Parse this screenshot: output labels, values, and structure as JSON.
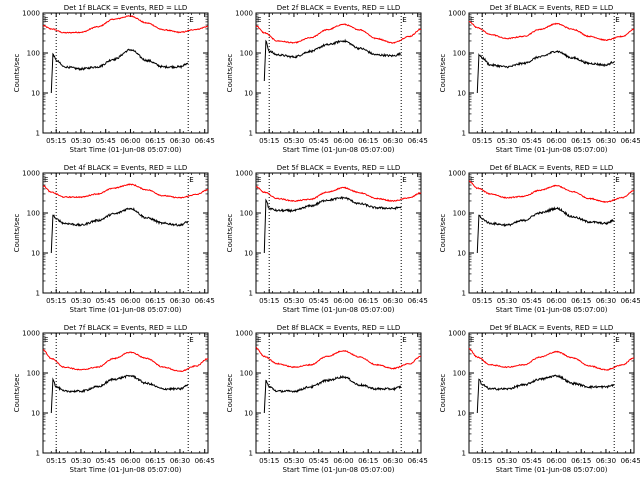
{
  "figure": {
    "xlabel": "Start Time (01-Jun-08 05:07:00)",
    "ylabel": "Counts/sec",
    "xticks": [
      "05:15",
      "05:30",
      "05:45",
      "06:00",
      "06:15",
      "06:30",
      "06:45"
    ],
    "yticks": [
      "1",
      "10",
      "100",
      "1000"
    ],
    "marker_letter": "E",
    "colors": {
      "events": "#000000",
      "lld": "#ff0000",
      "frame": "#000000"
    }
  },
  "chart_data": [
    {
      "type": "line",
      "title": "Det 1f  BLACK = Events, RED = LLD",
      "ylog": true,
      "xlim": [
        "05:07",
        "06:47"
      ],
      "ylim": [
        1,
        1000
      ],
      "vlines": [
        "05:15",
        "06:35"
      ],
      "series": [
        {
          "name": "LLD",
          "color": "#ff0000",
          "x": [
            "05:07",
            "05:12",
            "05:20",
            "05:30",
            "05:40",
            "05:50",
            "06:00",
            "06:10",
            "06:20",
            "06:30",
            "06:40",
            "06:47"
          ],
          "values": [
            480,
            400,
            320,
            330,
            450,
            700,
            840,
            560,
            380,
            330,
            390,
            460
          ]
        },
        {
          "name": "Events",
          "color": "#000000",
          "x": [
            "05:12",
            "05:13",
            "05:15",
            "05:20",
            "05:30",
            "05:40",
            "05:50",
            "06:00",
            "06:10",
            "06:20",
            "06:30",
            "06:35"
          ],
          "values": [
            10,
            95,
            65,
            45,
            40,
            45,
            70,
            120,
            65,
            45,
            45,
            55
          ]
        }
      ]
    },
    {
      "type": "line",
      "title": "Det 2f  BLACK = Events, RED = LLD",
      "ylog": true,
      "xlim": [
        "05:07",
        "06:47"
      ],
      "ylim": [
        1,
        1000
      ],
      "vlines": [
        "05:15",
        "06:35"
      ],
      "series": [
        {
          "name": "LLD",
          "color": "#ff0000",
          "x": [
            "05:07",
            "05:12",
            "05:20",
            "05:30",
            "05:40",
            "05:50",
            "06:00",
            "06:10",
            "06:20",
            "06:30",
            "06:40",
            "06:47"
          ],
          "values": [
            480,
            320,
            200,
            180,
            240,
            380,
            520,
            380,
            230,
            180,
            260,
            390
          ]
        },
        {
          "name": "Events",
          "color": "#000000",
          "x": [
            "05:12",
            "05:13",
            "05:15",
            "05:20",
            "05:30",
            "05:40",
            "05:50",
            "06:00",
            "06:10",
            "06:20",
            "06:30",
            "06:35"
          ],
          "values": [
            20,
            200,
            110,
            90,
            80,
            110,
            160,
            200,
            130,
            90,
            85,
            95
          ]
        }
      ]
    },
    {
      "type": "line",
      "title": "Det 3f  BLACK = Events, RED = LLD",
      "ylog": true,
      "xlim": [
        "05:07",
        "06:47"
      ],
      "ylim": [
        1,
        1000
      ],
      "vlines": [
        "05:15",
        "06:35"
      ],
      "series": [
        {
          "name": "LLD",
          "color": "#ff0000",
          "x": [
            "05:07",
            "05:12",
            "05:20",
            "05:30",
            "05:40",
            "05:50",
            "06:00",
            "06:10",
            "06:20",
            "06:30",
            "06:40",
            "06:47"
          ],
          "values": [
            620,
            430,
            290,
            230,
            260,
            390,
            540,
            390,
            260,
            210,
            260,
            390
          ]
        },
        {
          "name": "Events",
          "color": "#000000",
          "x": [
            "05:12",
            "05:13",
            "05:15",
            "05:20",
            "05:30",
            "05:40",
            "05:50",
            "06:00",
            "06:10",
            "06:20",
            "06:30",
            "06:35"
          ],
          "values": [
            10,
            90,
            75,
            50,
            45,
            55,
            80,
            110,
            75,
            55,
            50,
            60
          ]
        }
      ]
    },
    {
      "type": "line",
      "title": "Det 4f  BLACK = Events, RED = LLD",
      "ylog": true,
      "xlim": [
        "05:07",
        "06:47"
      ],
      "ylim": [
        1,
        1000
      ],
      "vlines": [
        "05:15",
        "06:35"
      ],
      "series": [
        {
          "name": "LLD",
          "color": "#ff0000",
          "x": [
            "05:07",
            "05:12",
            "05:20",
            "05:30",
            "05:40",
            "05:50",
            "06:00",
            "06:10",
            "06:20",
            "06:30",
            "06:40",
            "06:47"
          ],
          "values": [
            480,
            330,
            250,
            250,
            300,
            420,
            520,
            380,
            270,
            240,
            290,
            380
          ]
        },
        {
          "name": "Events",
          "color": "#000000",
          "x": [
            "05:12",
            "05:13",
            "05:15",
            "05:20",
            "05:30",
            "05:40",
            "05:50",
            "06:00",
            "06:10",
            "06:20",
            "06:30",
            "06:35"
          ],
          "values": [
            10,
            90,
            70,
            55,
            50,
            65,
            95,
            130,
            75,
            55,
            50,
            60
          ]
        }
      ]
    },
    {
      "type": "line",
      "title": "Det 5f  BLACK = Events, RED = LLD",
      "ylog": true,
      "xlim": [
        "05:07",
        "06:47"
      ],
      "ylim": [
        1,
        1000
      ],
      "vlines": [
        "05:15",
        "06:35"
      ],
      "series": [
        {
          "name": "LLD",
          "color": "#ff0000",
          "x": [
            "05:07",
            "05:12",
            "05:20",
            "05:30",
            "05:40",
            "05:50",
            "06:00",
            "06:10",
            "06:20",
            "06:30",
            "06:40",
            "06:47"
          ],
          "values": [
            450,
            330,
            230,
            200,
            220,
            330,
            430,
            320,
            230,
            200,
            240,
            320
          ]
        },
        {
          "name": "Events",
          "color": "#000000",
          "x": [
            "05:12",
            "05:13",
            "05:15",
            "05:20",
            "05:30",
            "05:40",
            "05:50",
            "06:00",
            "06:10",
            "06:20",
            "06:30",
            "06:35"
          ],
          "values": [
            10,
            210,
            130,
            115,
            115,
            150,
            210,
            240,
            170,
            135,
            130,
            140
          ]
        }
      ]
    },
    {
      "type": "line",
      "title": "Det 6f  BLACK = Events, RED = LLD",
      "ylog": true,
      "xlim": [
        "05:07",
        "06:47"
      ],
      "ylim": [
        1,
        1000
      ],
      "vlines": [
        "05:15",
        "06:35"
      ],
      "series": [
        {
          "name": "LLD",
          "color": "#ff0000",
          "x": [
            "05:07",
            "05:12",
            "05:20",
            "05:30",
            "05:40",
            "05:50",
            "06:00",
            "06:10",
            "06:20",
            "06:30",
            "06:40",
            "06:47"
          ],
          "values": [
            620,
            420,
            300,
            240,
            260,
            370,
            480,
            340,
            230,
            190,
            240,
            360
          ]
        },
        {
          "name": "Events",
          "color": "#000000",
          "x": [
            "05:12",
            "05:13",
            "05:15",
            "05:20",
            "05:30",
            "05:40",
            "05:50",
            "06:00",
            "06:10",
            "06:20",
            "06:30",
            "06:35"
          ],
          "values": [
            10,
            90,
            70,
            55,
            50,
            65,
            100,
            130,
            80,
            60,
            55,
            65
          ]
        }
      ]
    },
    {
      "type": "line",
      "title": "Det 7f  BLACK = Events, RED = LLD",
      "ylog": true,
      "xlim": [
        "05:07",
        "06:47"
      ],
      "ylim": [
        1,
        1000
      ],
      "vlines": [
        "05:15",
        "06:35"
      ],
      "series": [
        {
          "name": "LLD",
          "color": "#ff0000",
          "x": [
            "05:07",
            "05:12",
            "05:20",
            "05:30",
            "05:40",
            "05:50",
            "06:00",
            "06:10",
            "06:20",
            "06:30",
            "06:40",
            "06:47"
          ],
          "values": [
            380,
            230,
            140,
            120,
            140,
            230,
            330,
            230,
            140,
            110,
            150,
            230
          ]
        },
        {
          "name": "Events",
          "color": "#000000",
          "x": [
            "05:12",
            "05:13",
            "05:15",
            "05:20",
            "05:30",
            "05:40",
            "05:50",
            "06:00",
            "06:10",
            "06:20",
            "06:30",
            "06:35"
          ],
          "values": [
            10,
            70,
            45,
            35,
            35,
            45,
            70,
            85,
            55,
            40,
            40,
            50
          ]
        }
      ]
    },
    {
      "type": "line",
      "title": "Det 8f  BLACK = Events, RED = LLD",
      "ylog": true,
      "xlim": [
        "05:07",
        "06:47"
      ],
      "ylim": [
        1,
        1000
      ],
      "vlines": [
        "05:15",
        "06:35"
      ],
      "series": [
        {
          "name": "LLD",
          "color": "#ff0000",
          "x": [
            "05:07",
            "05:12",
            "05:20",
            "05:30",
            "05:40",
            "05:50",
            "06:00",
            "06:10",
            "06:20",
            "06:30",
            "06:40",
            "06:47"
          ],
          "values": [
            420,
            260,
            170,
            140,
            160,
            260,
            360,
            250,
            160,
            130,
            170,
            260
          ]
        },
        {
          "name": "Events",
          "color": "#000000",
          "x": [
            "05:12",
            "05:13",
            "05:15",
            "05:20",
            "05:30",
            "05:40",
            "05:50",
            "06:00",
            "06:10",
            "06:20",
            "06:30",
            "06:35"
          ],
          "values": [
            10,
            65,
            45,
            35,
            35,
            45,
            65,
            80,
            50,
            40,
            40,
            45
          ]
        }
      ]
    },
    {
      "type": "line",
      "title": "Det 9f  BLACK = Events, RED = LLD",
      "ylog": true,
      "xlim": [
        "05:07",
        "06:47"
      ],
      "ylim": [
        1,
        1000
      ],
      "vlines": [
        "05:15",
        "06:35"
      ],
      "series": [
        {
          "name": "LLD",
          "color": "#ff0000",
          "x": [
            "05:07",
            "05:12",
            "05:20",
            "05:30",
            "05:40",
            "05:50",
            "06:00",
            "06:10",
            "06:20",
            "06:30",
            "06:40",
            "06:47"
          ],
          "values": [
            400,
            250,
            160,
            140,
            160,
            250,
            340,
            240,
            150,
            120,
            160,
            240
          ]
        },
        {
          "name": "Events",
          "color": "#000000",
          "x": [
            "05:12",
            "05:13",
            "05:15",
            "05:20",
            "05:30",
            "05:40",
            "05:50",
            "06:00",
            "06:10",
            "06:20",
            "06:30",
            "06:35"
          ],
          "values": [
            10,
            70,
            50,
            40,
            40,
            50,
            70,
            85,
            55,
            45,
            45,
            50
          ]
        }
      ]
    }
  ]
}
